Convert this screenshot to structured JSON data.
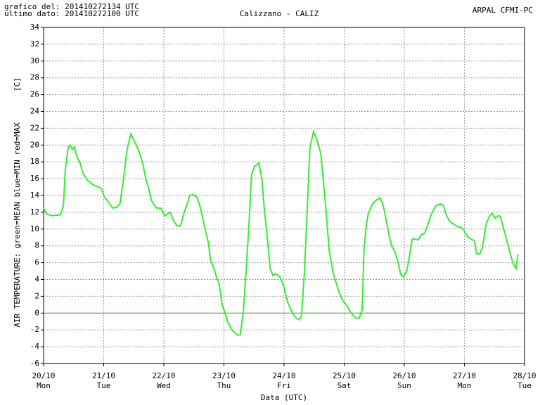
{
  "chart_data": {
    "type": "line",
    "header": {
      "plotted": "grafico del: 201410272134 UTC",
      "last_data": "ultimo dato: 201410272100 UTC",
      "title": "Calizzano - CALIZ",
      "source": "ARPAL CFMI-PC"
    },
    "ylabel_unit": "[C]",
    "ylabel": "AIR TEMPERATURE: green=MEAN  blue=MIN  red=MAX",
    "xlabel": "Data (UTC)",
    "color": "#33ee33",
    "grid": true,
    "xlim": [
      0,
      8
    ],
    "ylim": [
      -6,
      34
    ],
    "yticks": [
      -6,
      -4,
      -2,
      0,
      2,
      4,
      6,
      8,
      10,
      12,
      14,
      16,
      18,
      20,
      22,
      24,
      26,
      28,
      30,
      32,
      34
    ],
    "xticks": [
      {
        "value": 0,
        "label": "20/10"
      },
      {
        "value": 1,
        "label": "21/10"
      },
      {
        "value": 2,
        "label": "22/10"
      },
      {
        "value": 3,
        "label": "23/10"
      },
      {
        "value": 4,
        "label": "24/10"
      },
      {
        "value": 5,
        "label": "25/10"
      },
      {
        "value": 6,
        "label": "26/10"
      },
      {
        "value": 7,
        "label": "27/10"
      },
      {
        "value": 8,
        "label": "28/10"
      }
    ],
    "xtick_weekdays": [
      "Mon",
      "Tue",
      "Wed",
      "Thu",
      "Fri",
      "Sat",
      "Sun",
      "Mon",
      "Tue"
    ],
    "x": [
      0,
      0.05,
      0.14,
      0.28,
      0.33,
      0.36,
      0.41,
      0.44,
      0.48,
      0.51,
      0.56,
      0.61,
      0.65,
      0.73,
      0.82,
      0.91,
      0.96,
      1.01,
      1.06,
      1.15,
      1.22,
      1.27,
      1.33,
      1.39,
      1.45,
      1.51,
      1.59,
      1.65,
      1.7,
      1.74,
      1.8,
      1.88,
      1.95,
      2.01,
      2.11,
      2.16,
      2.22,
      2.28,
      2.33,
      2.39,
      2.43,
      2.49,
      2.55,
      2.61,
      2.67,
      2.74,
      2.78,
      2.83,
      2.88,
      2.92,
      2.97,
      3.02,
      3.06,
      3.13,
      3.22,
      3.27,
      3.32,
      3.37,
      3.42,
      3.46,
      3.51,
      3.54,
      3.58,
      3.63,
      3.67,
      3.72,
      3.77,
      3.81,
      3.86,
      3.93,
      3.99,
      4.06,
      4.12,
      4.19,
      4.25,
      4.29,
      4.34,
      4.39,
      4.43,
      4.49,
      4.54,
      4.61,
      4.65,
      4.7,
      4.75,
      4.81,
      4.87,
      4.92,
      4.98,
      5.04,
      5.09,
      5.15,
      5.2,
      5.25,
      5.3,
      5.33,
      5.37,
      5.4,
      5.47,
      5.54,
      5.6,
      5.65,
      5.7,
      5.74,
      5.79,
      5.85,
      5.89,
      5.94,
      5.99,
      6.04,
      6.08,
      6.13,
      6.19,
      6.23,
      6.28,
      6.34,
      6.4,
      6.44,
      6.5,
      6.55,
      6.61,
      6.65,
      6.7,
      6.76,
      6.82,
      6.88,
      6.94,
      6.99,
      7.05,
      7.11,
      7.17,
      7.2,
      7.25,
      7.3,
      7.36,
      7.42,
      7.46,
      7.51,
      7.56,
      7.6,
      7.65,
      7.71,
      7.77,
      7.81,
      7.86,
      7.89
    ],
    "values": [
      12.5,
      11.8,
      11.6,
      11.7,
      12.8,
      17,
      19.8,
      20,
      19.5,
      19.8,
      18.5,
      17.8,
      16.7,
      15.8,
      15.3,
      15,
      14.8,
      13.8,
      13.4,
      12.5,
      12.6,
      13,
      16,
      19.5,
      21.3,
      20.5,
      19.2,
      17.8,
      16,
      15,
      13.3,
      12.5,
      12.5,
      11.6,
      12,
      11,
      10.4,
      10.4,
      11.8,
      13,
      14,
      14.1,
      13.8,
      12.5,
      10.5,
      8.4,
      6.2,
      5.4,
      4.2,
      3.5,
      1,
      0,
      -1,
      -2,
      -2.6,
      -2.6,
      0,
      5,
      11,
      16.5,
      17.5,
      17.6,
      17.9,
      16,
      12.5,
      9,
      5.3,
      4.5,
      4.7,
      4.3,
      3.3,
      1.3,
      0.3,
      -0.5,
      -0.8,
      -0.3,
      5,
      13,
      19.7,
      21.6,
      20.8,
      19,
      16,
      12,
      7.5,
      5,
      3.5,
      2.4,
      1.4,
      1,
      0.3,
      -0.3,
      -0.6,
      -0.6,
      0.4,
      7.6,
      10.5,
      11.8,
      13,
      13.5,
      13.7,
      12.8,
      11,
      9.5,
      8,
      7.2,
      6.2,
      4.6,
      4.3,
      5,
      6.5,
      8.8,
      8.8,
      8.7,
      9.3,
      9.5,
      10.7,
      11.6,
      12.5,
      12.9,
      13,
      12.8,
      11.6,
      10.9,
      10.6,
      10.3,
      10.2,
      9.9,
      9.1,
      8.8,
      8.6,
      7.1,
      7,
      7.8,
      10.6,
      11.6,
      11.9,
      11.3,
      11.6,
      11.5,
      10.1,
      8.5,
      6.9,
      5.9,
      5.3,
      7
    ]
  }
}
